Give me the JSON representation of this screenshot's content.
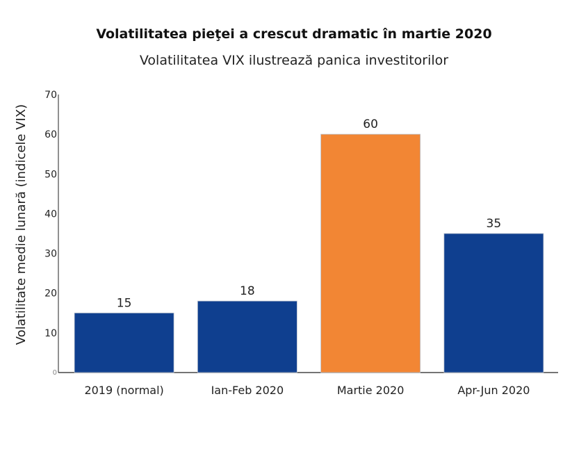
{
  "chart_data": {
    "type": "bar",
    "title": "Volatilitatea pieţei a crescut dramatic în martie 2020",
    "subtitle": "Volatilitatea VIX ilustrează panica investitorilor",
    "xlabel": "",
    "ylabel": "Volatilitate medie lunară (indicele VIX)",
    "categories": [
      "2019 (normal)",
      "Ian-Feb 2020",
      "Martie 2020",
      "Apr-Jun 2020"
    ],
    "values": [
      15,
      18,
      60,
      35
    ],
    "data_labels": [
      "15",
      "18",
      "60",
      "35"
    ],
    "colors": [
      "#0f3f8f",
      "#0f3f8f",
      "#f28634",
      "#0f3f8f"
    ],
    "ylim": [
      0,
      70
    ],
    "yticks": [
      0,
      10,
      20,
      30,
      40,
      50,
      60,
      70
    ],
    "grid": false,
    "legend": "none"
  }
}
